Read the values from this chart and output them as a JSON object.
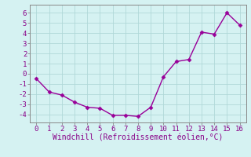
{
  "x": [
    0,
    1,
    2,
    3,
    4,
    5,
    6,
    7,
    8,
    9,
    10,
    11,
    12,
    13,
    14,
    15,
    16
  ],
  "y": [
    -0.5,
    -1.8,
    -2.1,
    -2.8,
    -3.3,
    -3.4,
    -4.1,
    -4.1,
    -4.2,
    -3.3,
    -0.3,
    1.2,
    1.4,
    4.1,
    3.9,
    6.0,
    4.8
  ],
  "line_color": "#990099",
  "marker": "D",
  "marker_size": 2.5,
  "line_width": 1.0,
  "xlabel": "Windchill (Refroidissement éolien,°C)",
  "xlim": [
    -0.5,
    16.5
  ],
  "ylim": [
    -4.8,
    6.8
  ],
  "yticks": [
    -4,
    -3,
    -2,
    -1,
    0,
    1,
    2,
    3,
    4,
    5,
    6
  ],
  "xticks": [
    0,
    1,
    2,
    3,
    4,
    5,
    6,
    7,
    8,
    9,
    10,
    11,
    12,
    13,
    14,
    15,
    16
  ],
  "bg_color": "#d5f2f2",
  "grid_color": "#b0d8d8",
  "tick_label_fontsize": 6.5,
  "xlabel_fontsize": 7.0,
  "label_color": "#880088",
  "spine_color": "#888888"
}
